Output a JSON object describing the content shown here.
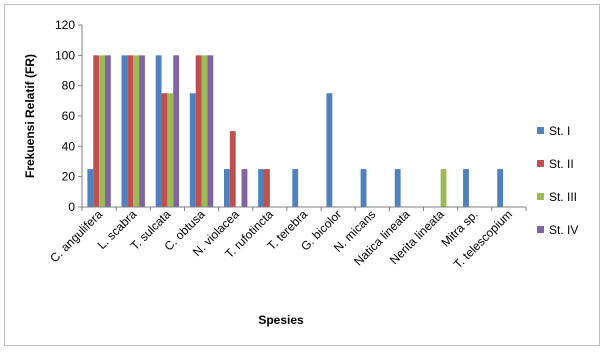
{
  "chart_data": {
    "type": "bar",
    "title": "",
    "xlabel": "Spesies",
    "ylabel": "Frekuensi Relatif (FR)",
    "ylim": [
      0,
      120
    ],
    "yticks": [
      0,
      20,
      40,
      60,
      80,
      100,
      120
    ],
    "grid": false,
    "legend_position": "right",
    "categories": [
      "C. angulifera",
      "L. scabra",
      "T. sulcata",
      "C. obtusa",
      "N. violacea",
      "T. rufotincta",
      "T. terebra",
      "G. bicolor",
      "N. micans",
      "Natica lineata",
      "Nerita lineata",
      "Mitra sp.",
      "T. telescopium"
    ],
    "series": [
      {
        "name": "St. I",
        "color": "#4f81bd",
        "values": [
          25,
          100,
          100,
          75,
          25,
          25,
          25,
          75,
          25,
          25,
          0,
          25,
          25
        ]
      },
      {
        "name": "St. II",
        "color": "#c0504d",
        "values": [
          100,
          100,
          75,
          100,
          50,
          25,
          0,
          0,
          0,
          0,
          0,
          0,
          0
        ]
      },
      {
        "name": "St. III",
        "color": "#9bbb59",
        "values": [
          100,
          100,
          75,
          100,
          0,
          0,
          0,
          0,
          0,
          0,
          25,
          0,
          0
        ]
      },
      {
        "name": "St. IV",
        "color": "#8064a2",
        "values": [
          100,
          100,
          100,
          100,
          25,
          0,
          0,
          0,
          0,
          0,
          0,
          0,
          0
        ]
      }
    ]
  }
}
